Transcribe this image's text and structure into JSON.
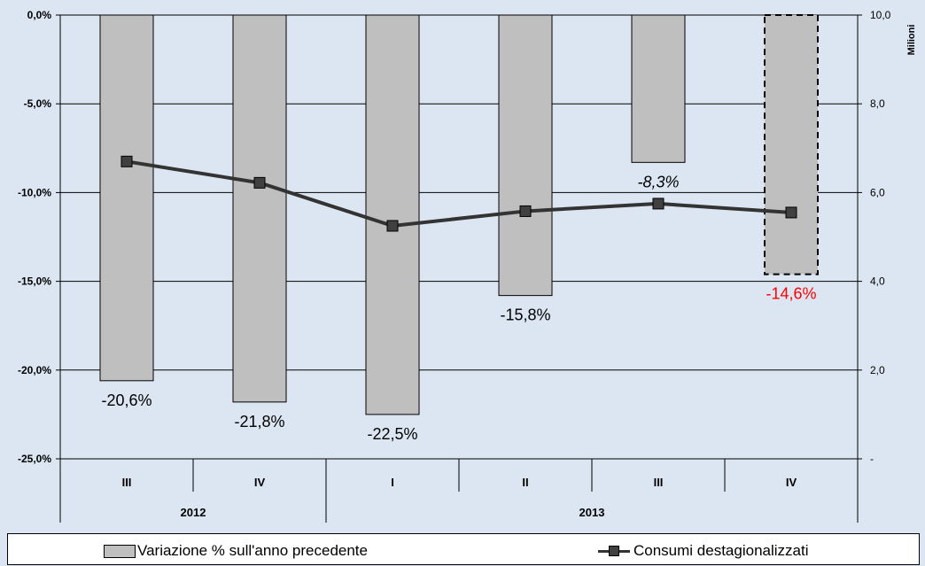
{
  "chart_data": {
    "type": "bar",
    "categories": [
      "III",
      "IV",
      "I",
      "II",
      "III",
      "IV"
    ],
    "year_groups": [
      {
        "label": "2012",
        "count": 2
      },
      {
        "label": "2013",
        "count": 4
      }
    ],
    "series": [
      {
        "name": "Variazione % sull'anno precedente",
        "type": "bar",
        "axis": "left",
        "values": [
          -20.6,
          -21.8,
          -22.5,
          -15.8,
          -8.3,
          -14.6
        ],
        "labels": [
          "-20,6%",
          "-21,8%",
          "-22,5%",
          "-15,8%",
          "-8,3%",
          "-14,6%"
        ],
        "estimated": [
          false,
          false,
          false,
          false,
          false,
          true
        ]
      },
      {
        "name": "Consumi destagionalizzati",
        "type": "line",
        "axis": "right",
        "values": [
          6.7,
          6.22,
          5.25,
          5.58,
          5.75,
          5.55
        ]
      }
    ],
    "y_left": {
      "min": -25,
      "max": 0,
      "ticks": [
        "0,0%",
        "-5,0%",
        "-10,0%",
        "-15,0%",
        "-20,0%",
        "-25,0%"
      ]
    },
    "y_right": {
      "min": 0,
      "max": 10,
      "ticks": [
        "10,0",
        "8,0",
        "6,0",
        "4,0",
        "2,0",
        "-"
      ],
      "label": "Milioni"
    },
    "grid": true,
    "legend_position": "bottom",
    "colors": {
      "background": "#dce6f2",
      "bar_fill": "#bfbfbf",
      "line": "#333333",
      "marker": "#404040",
      "estimate_label": "#ff0000"
    }
  }
}
